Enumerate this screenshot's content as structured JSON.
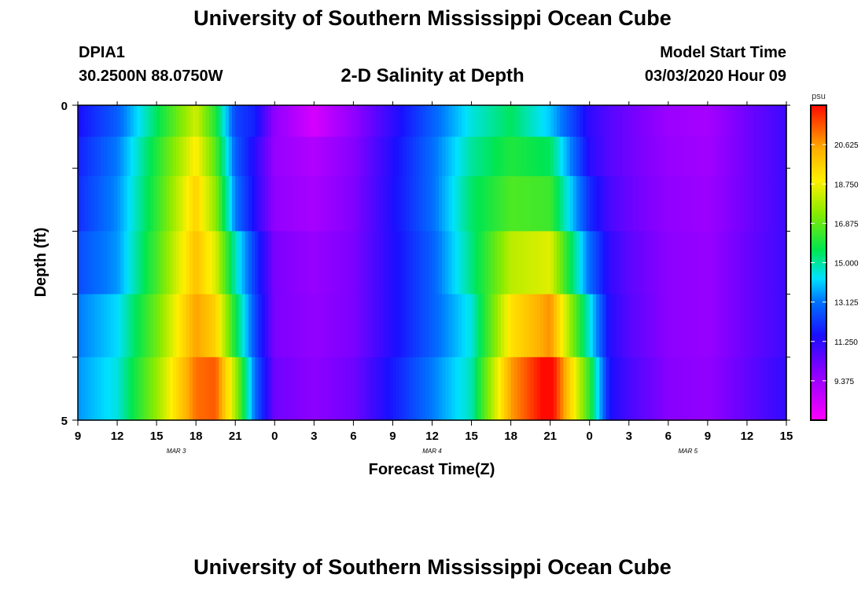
{
  "header": {
    "title": "University of Southern Mississippi Ocean Cube",
    "station_id": "DPIA1",
    "station_coords": "30.2500N 88.0750W",
    "chart_title": "2-D Salinity at Depth",
    "model_label": "Model Start Time",
    "model_time": "03/03/2020 Hour 09"
  },
  "footer": {
    "title": "University of Southern Mississippi Ocean Cube"
  },
  "chart_data": {
    "type": "heatmap",
    "title": "2-D Salinity at Depth",
    "xlabel": "Forecast Time(Z)",
    "ylabel": "Depth (ft)",
    "x_hours_range": [
      0,
      54
    ],
    "x_tick_hours": [
      0,
      3,
      6,
      9,
      12,
      15,
      18,
      21,
      24,
      27,
      30,
      33,
      36,
      39,
      42,
      45,
      48,
      51,
      54
    ],
    "x_tick_labels": [
      "9",
      "12",
      "15",
      "18",
      "21",
      "0",
      "3",
      "6",
      "9",
      "12",
      "15",
      "18",
      "21",
      "0",
      "3",
      "6",
      "9",
      "12",
      "15"
    ],
    "date_labels": [
      {
        "text": "MAR 3",
        "hour": 7.5
      },
      {
        "text": "MAR 4",
        "hour": 27
      },
      {
        "text": "MAR 5",
        "hour": 46.5
      }
    ],
    "y_range": [
      0,
      5
    ],
    "y_tick_labels": [
      "0",
      "5"
    ],
    "colorbar": {
      "unit": "psu",
      "range": [
        7.5,
        22.5
      ],
      "ticks": [
        9.375,
        11.25,
        13.125,
        15.0,
        16.875,
        18.75,
        20.625
      ],
      "tick_labels": [
        "9.375",
        "11.250",
        "13.125",
        "15.000",
        "16.875",
        "18.750",
        "20.625"
      ]
    },
    "layer_depths_ft": [
      0.25,
      0.75,
      1.5,
      2.5,
      3.5,
      4.5
    ],
    "hours": [
      0,
      3,
      6,
      9,
      10.5,
      12,
      13.5,
      15,
      18,
      21,
      27,
      30,
      33,
      36,
      39,
      40.5,
      42,
      45,
      48,
      51,
      54
    ],
    "salinity": [
      [
        11.5,
        12.8,
        15.5,
        18.3,
        16.0,
        12.4,
        11.8,
        9.6,
        8.3,
        9.6,
        12.8,
        14.5,
        15.5,
        14.0,
        11.2,
        10.6,
        10.2,
        9.4,
        9.2,
        10.2,
        11.0
      ],
      [
        11.8,
        13.2,
        16.0,
        19.0,
        16.7,
        12.8,
        11.3,
        9.5,
        9.0,
        9.8,
        13.0,
        15.0,
        16.0,
        15.5,
        11.3,
        10.6,
        10.2,
        9.5,
        9.3,
        10.2,
        11.0
      ],
      [
        12.0,
        13.4,
        16.2,
        19.6,
        17.4,
        13.2,
        11.4,
        9.6,
        9.2,
        9.9,
        13.0,
        15.4,
        16.6,
        16.4,
        12.0,
        10.8,
        10.3,
        9.6,
        9.4,
        10.2,
        11.0
      ],
      [
        12.5,
        13.5,
        16.5,
        20.0,
        18.4,
        14.8,
        12.2,
        10.0,
        9.5,
        10.0,
        12.8,
        15.2,
        18.0,
        18.5,
        13.0,
        11.2,
        10.5,
        9.7,
        9.5,
        10.3,
        11.0
      ],
      [
        13.2,
        14.2,
        17.0,
        20.6,
        19.6,
        15.8,
        12.5,
        10.0,
        9.6,
        10.0,
        12.8,
        14.5,
        19.2,
        20.8,
        14.5,
        11.4,
        10.6,
        9.7,
        9.5,
        10.3,
        11.0
      ],
      [
        13.5,
        14.5,
        17.5,
        21.2,
        21.5,
        17.8,
        13.0,
        10.2,
        9.7,
        10.2,
        13.2,
        14.8,
        20.6,
        23.0,
        16.2,
        11.6,
        10.8,
        9.8,
        9.6,
        10.4,
        11.2
      ]
    ]
  }
}
